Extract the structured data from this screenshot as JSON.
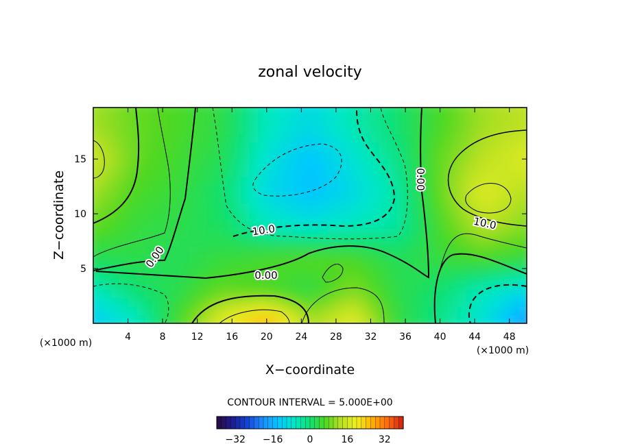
{
  "chart_data": {
    "type": "heatmap",
    "title": "zonal velocity",
    "xlabel": "X−coordinate",
    "ylabel": "Z−coordinate",
    "x_unit_left": "(×1000 m)",
    "x_unit_right": "(×1000 m)",
    "xlim": [
      0,
      50
    ],
    "ylim": [
      0,
      19.7
    ],
    "x_ticks": [
      4,
      8,
      12,
      16,
      20,
      24,
      28,
      32,
      36,
      40,
      44,
      48
    ],
    "y_ticks": [
      5,
      10,
      15
    ],
    "contour_interval_text": "CONTOUR INTERVAL = 5.000E+00",
    "contour_labels": [
      "0.00",
      "0.00",
      "0.00",
      "10.0",
      "10.0"
    ],
    "colorbar": {
      "range": [
        -40,
        40
      ],
      "ticks": [
        -32,
        -16,
        0,
        16,
        32
      ],
      "tick_labels": [
        "−32",
        "−16",
        "0",
        "16",
        "32"
      ],
      "colors": [
        "#2a0a3f",
        "#1d1d8f",
        "#1446d8",
        "#1e90ff",
        "#00c8ff",
        "#00e8c8",
        "#10e070",
        "#50d820",
        "#b8e020",
        "#f0f020",
        "#ffb000",
        "#ff6a10",
        "#d02010"
      ]
    },
    "field": {
      "x": [
        0,
        5,
        10,
        15,
        20,
        25,
        30,
        35,
        40,
        45,
        50
      ],
      "z": [
        0.5,
        3,
        6,
        9,
        12,
        15,
        18
      ],
      "values": [
        [
          -12,
          -6,
          6,
          18,
          26,
          12,
          18,
          4,
          -2,
          -8,
          -18
        ],
        [
          -6,
          0,
          3,
          8,
          6,
          3,
          10,
          3,
          0,
          -6,
          -10
        ],
        [
          2,
          3,
          2,
          4,
          6,
          7,
          6,
          2,
          4,
          6,
          4
        ],
        [
          8,
          4,
          3,
          1,
          -6,
          -8,
          -6,
          -4,
          6,
          14,
          10
        ],
        [
          12,
          6,
          4,
          0,
          -10,
          -14,
          -10,
          -4,
          8,
          18,
          13
        ],
        [
          16,
          8,
          5,
          2,
          -8,
          -14,
          -8,
          -2,
          8,
          14,
          18
        ],
        [
          12,
          8,
          6,
          3,
          -6,
          -10,
          -5,
          0,
          6,
          12,
          14
        ]
      ]
    }
  }
}
